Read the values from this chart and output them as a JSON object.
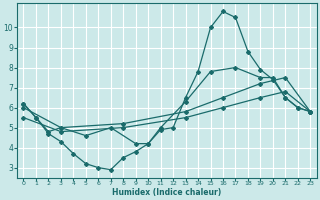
{
  "xlabel": "Humidex (Indice chaleur)",
  "bg_color": "#cce9e9",
  "grid_color": "#ffffff",
  "line_color": "#1a6b6b",
  "xlim": [
    -0.5,
    23.5
  ],
  "ylim": [
    2.5,
    11.2
  ],
  "xticks": [
    0,
    1,
    2,
    3,
    4,
    5,
    6,
    7,
    8,
    9,
    10,
    11,
    12,
    13,
    14,
    15,
    16,
    17,
    18,
    19,
    20,
    21,
    22,
    23
  ],
  "yticks": [
    3,
    4,
    5,
    6,
    7,
    8,
    9,
    10
  ],
  "lines": [
    {
      "x": [
        0,
        1,
        2,
        3,
        4,
        5,
        6,
        7,
        8,
        9,
        10,
        11,
        12,
        13,
        14,
        15,
        16,
        17,
        18,
        19,
        20,
        21,
        22,
        23
      ],
      "y": [
        6.2,
        5.5,
        4.7,
        4.3,
        3.7,
        3.2,
        3.0,
        2.9,
        3.5,
        3.8,
        4.2,
        4.9,
        5.0,
        6.5,
        7.8,
        10.0,
        10.8,
        10.5,
        8.8,
        7.9,
        7.4,
        6.5,
        6.0,
        5.8
      ]
    },
    {
      "x": [
        0,
        1,
        2,
        3,
        5,
        7,
        9,
        10,
        11,
        13,
        15,
        17,
        19,
        20,
        21,
        22,
        23
      ],
      "y": [
        6.2,
        5.5,
        4.8,
        5.0,
        4.6,
        5.0,
        4.2,
        4.2,
        5.0,
        6.3,
        7.8,
        8.0,
        7.5,
        7.5,
        6.5,
        6.0,
        5.8
      ]
    },
    {
      "x": [
        0,
        3,
        8,
        13,
        16,
        19,
        21,
        23
      ],
      "y": [
        6.0,
        5.0,
        5.2,
        5.8,
        6.5,
        7.2,
        7.5,
        5.8
      ]
    },
    {
      "x": [
        0,
        3,
        8,
        13,
        16,
        19,
        21,
        23
      ],
      "y": [
        5.5,
        4.8,
        5.0,
        5.5,
        6.0,
        6.5,
        6.8,
        5.8
      ]
    }
  ]
}
